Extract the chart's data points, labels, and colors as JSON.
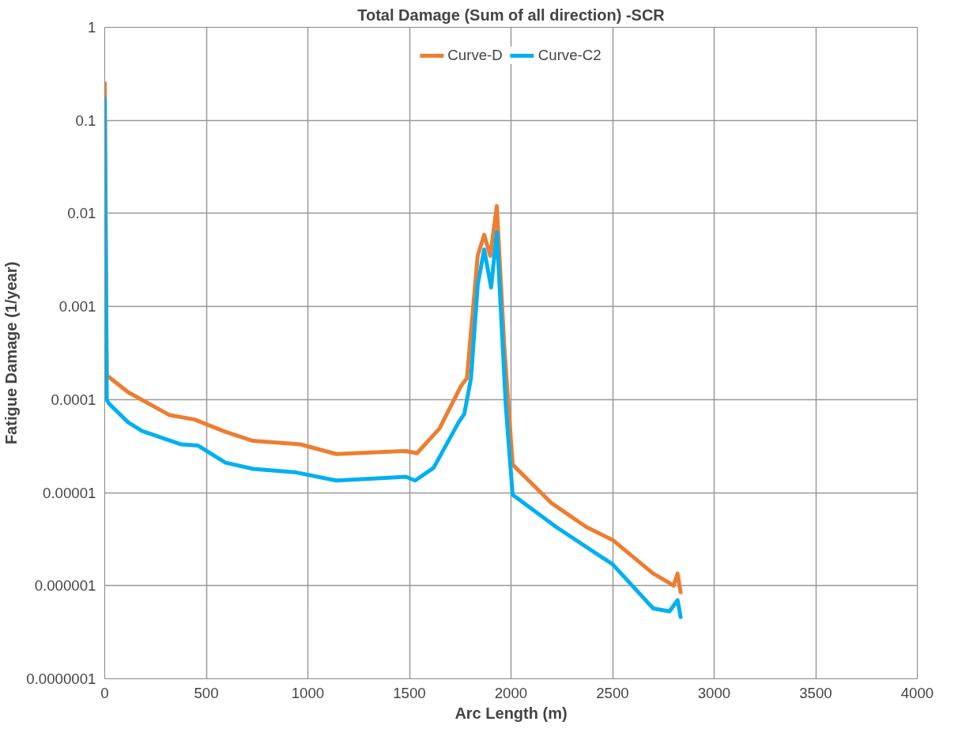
{
  "chart_data": {
    "type": "line",
    "title": "Total Damage (Sum of all direction) -SCR",
    "xlabel": "Arc Length (m)",
    "ylabel": "Fatigue Damage (1/year)",
    "log": "y",
    "grid": true,
    "legend": "top",
    "marker": "none",
    "line_style": "solid",
    "xlim": [
      0,
      4000
    ],
    "xticks": [
      0,
      500,
      1000,
      1500,
      2000,
      2500,
      3000,
      3500,
      4000
    ],
    "ylim": [
      1e-07,
      1
    ],
    "yticks": [
      {
        "value": 1e-07,
        "label": "0.0000001"
      },
      {
        "value": 1e-06,
        "label": "0.000001"
      },
      {
        "value": 1e-05,
        "label": "0.00001"
      },
      {
        "value": 0.0001,
        "label": "0.0001"
      },
      {
        "value": 0.001,
        "label": "0.001"
      },
      {
        "value": 0.01,
        "label": "0.01"
      },
      {
        "value": 0.1,
        "label": "0.1"
      },
      {
        "value": 1,
        "label": "1"
      }
    ],
    "series": [
      {
        "name": "Curve-D",
        "color": "#ed7d31",
        "x": [
          0,
          10,
          20,
          115,
          320,
          443,
          594,
          730,
          963,
          1140,
          1483,
          1537,
          1648,
          1754,
          1783,
          1836,
          1868,
          1898,
          1930,
          1967,
          2008,
          2111,
          2200,
          2369,
          2500,
          2700,
          2780,
          2800,
          2820,
          2835
        ],
        "values": [
          0.25,
          0.00018,
          0.000175,
          0.00012,
          6.8e-05,
          6.1e-05,
          4.5e-05,
          3.6e-05,
          3.3e-05,
          2.6e-05,
          2.8e-05,
          2.65e-05,
          4.9e-05,
          0.00014,
          0.00017,
          0.0035,
          0.0059,
          0.0035,
          0.012,
          0.00037,
          2e-05,
          1.2e-05,
          7.7e-06,
          4.3e-06,
          3.1e-06,
          1.35e-06,
          1.07e-06,
          1e-06,
          1.35e-06,
          8.5e-07
        ]
      },
      {
        "name": "Curve-C2",
        "color": "#00b0f0",
        "x": [
          0,
          10,
          20,
          115,
          184,
          377,
          459,
          594,
          730,
          934,
          1140,
          1483,
          1528,
          1619,
          1742,
          1770,
          1803,
          1836,
          1868,
          1902,
          1930,
          1975,
          2008,
          2221,
          2500,
          2700,
          2780,
          2820,
          2835
        ],
        "values": [
          0.17,
          0.0001,
          9.1e-05,
          5.7e-05,
          4.6e-05,
          3.3e-05,
          3.2e-05,
          2.1e-05,
          1.8e-05,
          1.66e-05,
          1.35e-05,
          1.48e-05,
          1.35e-05,
          1.85e-05,
          5.7e-05,
          7e-05,
          0.00017,
          0.0017,
          0.0041,
          0.0016,
          0.0063,
          8.1e-05,
          9.5e-06,
          4.3e-06,
          1.7e-06,
          5.7e-07,
          5.3e-07,
          7e-07,
          4.6e-07
        ]
      }
    ]
  }
}
